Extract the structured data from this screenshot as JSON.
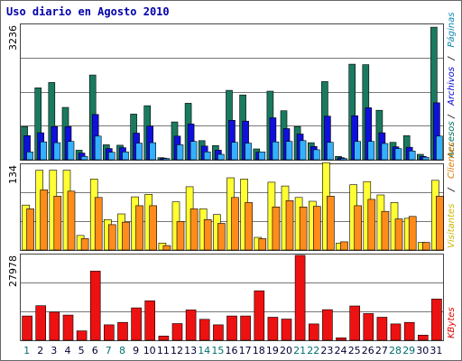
{
  "header": {
    "title": "Uso diario en Agosto 2010"
  },
  "chart_data": [
    {
      "type": "bar",
      "name_row": "accesos",
      "ytick": "3236",
      "ylim": [
        0,
        3236
      ],
      "side_labels": [
        {
          "text": "Accesos",
          "color": "#006e55"
        },
        {
          "text": "Archivos",
          "color": "#0000cc"
        },
        {
          "text": "Páginas",
          "color": "#0f88b0"
        }
      ],
      "categories": [
        "1",
        "2",
        "3",
        "4",
        "5",
        "6",
        "7",
        "8",
        "9",
        "10",
        "11",
        "12",
        "13",
        "14",
        "15",
        "16",
        "17",
        "18",
        "19",
        "20",
        "21",
        "22",
        "23",
        "24",
        "25",
        "26",
        "27",
        "28",
        "29",
        "30",
        "31"
      ],
      "series": [
        {
          "color": "#1a7a60",
          "values": [
            800,
            1730,
            1860,
            1260,
            230,
            2040,
            360,
            350,
            1100,
            1300,
            50,
            910,
            1360,
            460,
            340,
            1670,
            1560,
            260,
            1650,
            1180,
            800,
            410,
            1880,
            80,
            2300,
            2290,
            1190,
            420,
            580,
            130,
            3190
          ]
        },
        {
          "color": "#1010dd",
          "values": [
            580,
            650,
            800,
            800,
            160,
            1090,
            270,
            290,
            640,
            810,
            40,
            570,
            860,
            330,
            230,
            950,
            930,
            180,
            1010,
            750,
            620,
            320,
            1050,
            50,
            1060,
            1250,
            650,
            310,
            300,
            80,
            1370
          ]
        },
        {
          "color": "#33b0ff",
          "values": [
            190,
            430,
            410,
            440,
            80,
            570,
            180,
            190,
            400,
            410,
            30,
            360,
            440,
            190,
            130,
            420,
            400,
            190,
            430,
            440,
            460,
            240,
            420,
            30,
            440,
            440,
            390,
            270,
            210,
            60,
            570
          ]
        }
      ]
    },
    {
      "type": "bar",
      "name_row": "visitantes",
      "ytick": "134",
      "ylim": [
        0,
        134
      ],
      "side_labels": [
        {
          "text": "Visitantes",
          "color": "#c8b800"
        },
        {
          "text": "Clientes",
          "color": "#e07800"
        }
      ],
      "categories": [
        "1",
        "2",
        "3",
        "4",
        "5",
        "6",
        "7",
        "8",
        "9",
        "10",
        "11",
        "12",
        "13",
        "14",
        "15",
        "16",
        "17",
        "18",
        "19",
        "20",
        "21",
        "22",
        "23",
        "24",
        "25",
        "26",
        "27",
        "28",
        "29",
        "30",
        "31"
      ],
      "series": [
        {
          "color": "#ffff33",
          "values": [
            71,
            126,
            126,
            126,
            23,
            112,
            48,
            57,
            84,
            88,
            11,
            76,
            100,
            65,
            56,
            114,
            112,
            20,
            107,
            101,
            83,
            77,
            138,
            11,
            103,
            108,
            87,
            75,
            50,
            12,
            110
          ]
        },
        {
          "color": "#ff8c1a",
          "values": [
            65,
            95,
            85,
            93,
            18,
            83,
            40,
            44,
            70,
            70,
            7,
            45,
            65,
            48,
            42,
            83,
            75,
            18,
            68,
            78,
            68,
            69,
            85,
            13,
            70,
            80,
            61,
            49,
            53,
            12,
            85
          ]
        }
      ]
    },
    {
      "type": "bar",
      "name_row": "kbytes",
      "ytick": "27978",
      "ylim": [
        0,
        27978
      ],
      "side_labels": [
        {
          "text": "KBytes",
          "color": "#dd0000"
        }
      ],
      "categories": [
        "1",
        "2",
        "3",
        "4",
        "5",
        "6",
        "7",
        "8",
        "9",
        "10",
        "11",
        "12",
        "13",
        "14",
        "15",
        "16",
        "17",
        "18",
        "19",
        "20",
        "21",
        "22",
        "23",
        "24",
        "25",
        "26",
        "27",
        "28",
        "29",
        "30",
        "31"
      ],
      "series": [
        {
          "color": "#ee1111",
          "values": [
            8000,
            11400,
            9300,
            8300,
            3100,
            22800,
            5100,
            5900,
            10700,
            13000,
            1400,
            5500,
            10000,
            6900,
            5100,
            8000,
            8000,
            16300,
            7600,
            7000,
            28000,
            5400,
            10100,
            800,
            11300,
            8800,
            7600,
            5400,
            5900,
            1700,
            13600
          ]
        }
      ]
    }
  ],
  "x_axis": {
    "labels": [
      "1",
      "2",
      "3",
      "4",
      "5",
      "6",
      "7",
      "8",
      "9",
      "10",
      "11",
      "12",
      "13",
      "14",
      "15",
      "16",
      "17",
      "18",
      "19",
      "20",
      "21",
      "22",
      "23",
      "24",
      "25",
      "26",
      "27",
      "28",
      "29",
      "30",
      "31"
    ],
    "weekend_color": "#007070",
    "weekday_color": "#000033",
    "weekend_days": [
      1,
      7,
      8,
      14,
      15,
      21,
      22,
      28,
      29
    ]
  }
}
